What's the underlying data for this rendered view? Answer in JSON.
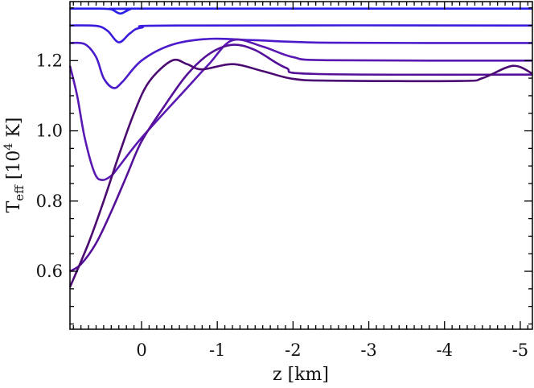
{
  "chart_data": {
    "type": "line",
    "xlabel": "z [km]",
    "ylabel": {
      "main": "T",
      "sub": "eff",
      "rest_pre": " [10",
      "sup": "4",
      "rest_post": " K]"
    },
    "xlim": [
      0.945,
      -5.16
    ],
    "ylim": [
      0.435,
      1.368
    ],
    "x_reversed": true,
    "grid": false,
    "x_ticks": [
      0,
      -1,
      -2,
      -3,
      -4,
      -5
    ],
    "x_tick_labels": [
      "0",
      "-1",
      "-2",
      "-3",
      "-4",
      "-5"
    ],
    "x_minor_step": 0.1,
    "y_ticks": [
      0.6,
      0.8,
      1.0,
      1.2
    ],
    "y_tick_labels": [
      "0.6",
      "0.8",
      "1.0",
      "1.2"
    ],
    "y_minor_step": 0.05,
    "series": [
      {
        "color": "#2a1ee8",
        "points": [
          [
            0.945,
            1.348
          ],
          [
            0.55,
            1.348
          ],
          [
            0.4,
            1.346
          ],
          [
            0.28,
            1.334
          ],
          [
            0.15,
            1.346
          ],
          [
            0,
            1.348
          ],
          [
            -5.16,
            1.348
          ]
        ]
      },
      {
        "color": "#3c1cdc",
        "points": [
          [
            0.945,
            1.3
          ],
          [
            0.6,
            1.299
          ],
          [
            0.45,
            1.285
          ],
          [
            0.3,
            1.252
          ],
          [
            0.15,
            1.278
          ],
          [
            0,
            1.294
          ],
          [
            -0.5,
            1.3
          ],
          [
            -5.16,
            1.3
          ]
        ]
      },
      {
        "color": "#4a1acb",
        "points": [
          [
            0.945,
            1.25
          ],
          [
            0.75,
            1.247
          ],
          [
            0.6,
            1.21
          ],
          [
            0.5,
            1.15
          ],
          [
            0.37,
            1.122
          ],
          [
            0.25,
            1.14
          ],
          [
            0,
            1.2
          ],
          [
            -0.4,
            1.245
          ],
          [
            -0.9,
            1.262
          ],
          [
            -1.5,
            1.258
          ],
          [
            -2.5,
            1.251
          ],
          [
            -5.16,
            1.25
          ]
        ]
      },
      {
        "color": "#5a18b2",
        "points": [
          [
            0.945,
            1.185
          ],
          [
            0.85,
            1.1
          ],
          [
            0.75,
            0.98
          ],
          [
            0.62,
            0.88
          ],
          [
            0.52,
            0.86
          ],
          [
            0.4,
            0.872
          ],
          [
            0.31,
            0.895
          ],
          [
            0,
            0.98
          ],
          [
            -0.57,
            1.115
          ],
          [
            -0.89,
            1.19
          ],
          [
            -1.2,
            1.258
          ],
          [
            -1.6,
            1.24
          ],
          [
            -2.0,
            1.21
          ],
          [
            -2.5,
            1.201
          ],
          [
            -5.16,
            1.2
          ]
        ]
      },
      {
        "color": "#55109a",
        "points": [
          [
            0.945,
            0.6
          ],
          [
            0.8,
            0.62
          ],
          [
            0.6,
            0.68
          ],
          [
            0.4,
            0.77
          ],
          [
            0.2,
            0.87
          ],
          [
            0,
            0.97
          ],
          [
            -0.3,
            1.07
          ],
          [
            -0.6,
            1.16
          ],
          [
            -0.9,
            1.22
          ],
          [
            -1.2,
            1.245
          ],
          [
            -1.5,
            1.23
          ],
          [
            -1.9,
            1.18
          ],
          [
            -2.3,
            1.162
          ],
          [
            -5.16,
            1.16
          ]
        ]
      },
      {
        "color": "#4a0a72",
        "points": [
          [
            0.945,
            0.555
          ],
          [
            0.7,
            0.68
          ],
          [
            0.5,
            0.8
          ],
          [
            0.3,
            0.93
          ],
          [
            0.1,
            1.05
          ],
          [
            -0.1,
            1.14
          ],
          [
            -0.4,
            1.2
          ],
          [
            -0.6,
            1.19
          ],
          [
            -0.8,
            1.175
          ],
          [
            -1.2,
            1.19
          ],
          [
            -1.6,
            1.17
          ],
          [
            -2.0,
            1.148
          ],
          [
            -2.5,
            1.143
          ],
          [
            -4.2,
            1.142
          ],
          [
            -4.5,
            1.15
          ],
          [
            -4.9,
            1.185
          ],
          [
            -5.16,
            1.163
          ]
        ]
      }
    ]
  }
}
